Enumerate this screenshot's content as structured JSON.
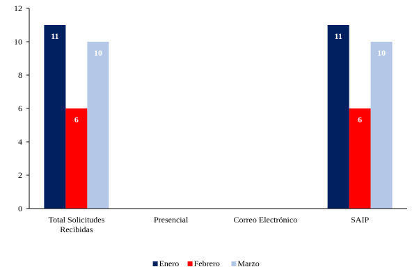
{
  "chart_data": {
    "type": "bar",
    "categories": [
      [
        "Total Solicitudes",
        "Recibidas"
      ],
      [
        "Presencial"
      ],
      [
        "Correo Electrónico"
      ],
      [
        "SAIP"
      ]
    ],
    "series": [
      {
        "name": "Enero",
        "color": "#002060",
        "values": [
          11,
          0,
          0,
          11
        ]
      },
      {
        "name": "Febrero",
        "color": "#ff0000",
        "values": [
          6,
          0,
          0,
          6
        ]
      },
      {
        "name": "Marzo",
        "color": "#b4c7e7",
        "values": [
          10,
          0,
          0,
          10
        ]
      }
    ],
    "ylim": [
      0,
      12
    ],
    "yticks": [
      0,
      2,
      4,
      6,
      8,
      10,
      12
    ],
    "grid": false,
    "data_labels": true,
    "legend_position": "bottom"
  }
}
